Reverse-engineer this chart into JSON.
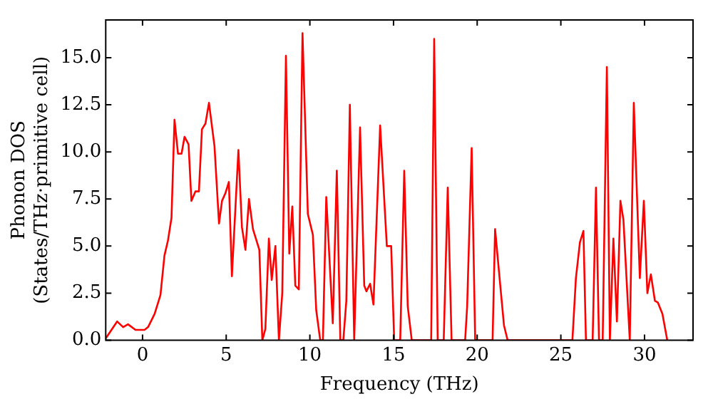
{
  "chart_data": {
    "type": "line",
    "xlabel": "Frequency (THz)",
    "ylabel": "Phonon DOS\n(States/THz·primitive cell)",
    "xlim": [
      -2.2,
      32.9
    ],
    "ylim": [
      0,
      17
    ],
    "xticks": [
      0,
      5,
      10,
      15,
      20,
      25,
      30
    ],
    "yticks": [
      {
        "value": 0,
        "label": "0.0"
      },
      {
        "value": 2.5,
        "label": "2.5"
      },
      {
        "value": 5,
        "label": "5.0"
      },
      {
        "value": 7.5,
        "label": "7.5"
      },
      {
        "value": 10,
        "label": "10.0"
      },
      {
        "value": 12.5,
        "label": "12.5"
      },
      {
        "value": 15,
        "label": "15.0"
      }
    ],
    "grid": false,
    "legend": false,
    "marker": "none",
    "line_style": "solid",
    "series": [
      {
        "color": "#ff0000",
        "x": [
          -2.2,
          -1.52,
          -1.16,
          -0.87,
          -0.42,
          0.12,
          0.33,
          0.72,
          1.07,
          1.31,
          1.52,
          1.73,
          1.91,
          2.12,
          2.33,
          2.51,
          2.75,
          2.92,
          3.16,
          3.37,
          3.55,
          3.76,
          3.97,
          4.3,
          4.57,
          4.75,
          4.95,
          5.16,
          5.34,
          5.73,
          5.94,
          6.15,
          6.36,
          6.6,
          6.98,
          7.16,
          7.34,
          7.55,
          7.72,
          7.94,
          8.15,
          8.35,
          8.57,
          8.77,
          8.95,
          9.13,
          9.34,
          9.56,
          9.88,
          10.18,
          10.38,
          10.62,
          10.78,
          10.98,
          11.37,
          11.61,
          11.82,
          12.0,
          12.18,
          12.39,
          12.65,
          13.0,
          13.25,
          13.38,
          13.6,
          13.8,
          14.2,
          14.6,
          14.86,
          15.04,
          15.4,
          15.64,
          15.85,
          16.09,
          17.25,
          17.43,
          17.64,
          18.0,
          18.24,
          18.47,
          19.28,
          19.4,
          19.67,
          19.88,
          20.92,
          21.07,
          21.37,
          21.6,
          21.82,
          25.69,
          25.9,
          26.14,
          26.35,
          26.5,
          26.9,
          27.1,
          27.28,
          27.5,
          27.75,
          27.93,
          28.14,
          28.35,
          28.56,
          28.74,
          29.12,
          29.36,
          29.72,
          29.96,
          30.17,
          30.38,
          30.62,
          30.8,
          31.07,
          31.36
        ],
        "values": [
          0.1,
          1.0,
          0.7,
          0.85,
          0.55,
          0.55,
          0.7,
          1.4,
          2.4,
          4.5,
          5.3,
          6.5,
          11.7,
          9.9,
          9.9,
          10.8,
          10.4,
          7.4,
          7.9,
          7.9,
          11.2,
          11.5,
          12.6,
          10.3,
          6.2,
          7.4,
          7.8,
          8.4,
          3.4,
          10.1,
          6.0,
          4.8,
          7.5,
          5.9,
          4.8,
          0,
          0.6,
          5.4,
          3.2,
          5.0,
          0,
          2.5,
          15.1,
          4.6,
          7.1,
          2.9,
          2.7,
          16.3,
          6.7,
          5.6,
          1.6,
          0,
          0,
          7.6,
          0.9,
          9.0,
          0,
          0,
          2.1,
          12.5,
          0,
          11.3,
          2.9,
          2.6,
          3.0,
          1.9,
          11.4,
          5.0,
          5.0,
          0,
          0,
          9.0,
          1.8,
          0,
          0,
          16.0,
          0,
          0,
          8.1,
          0,
          0,
          1.8,
          10.2,
          0,
          0,
          5.9,
          3.0,
          0.8,
          0,
          0,
          3.3,
          5.2,
          5.8,
          0,
          0,
          8.1,
          0,
          0,
          14.5,
          0,
          5.4,
          1.0,
          7.4,
          6.4,
          0,
          12.6,
          3.3,
          7.4,
          2.5,
          3.5,
          2.1,
          2.0,
          1.4,
          0
        ]
      }
    ]
  }
}
